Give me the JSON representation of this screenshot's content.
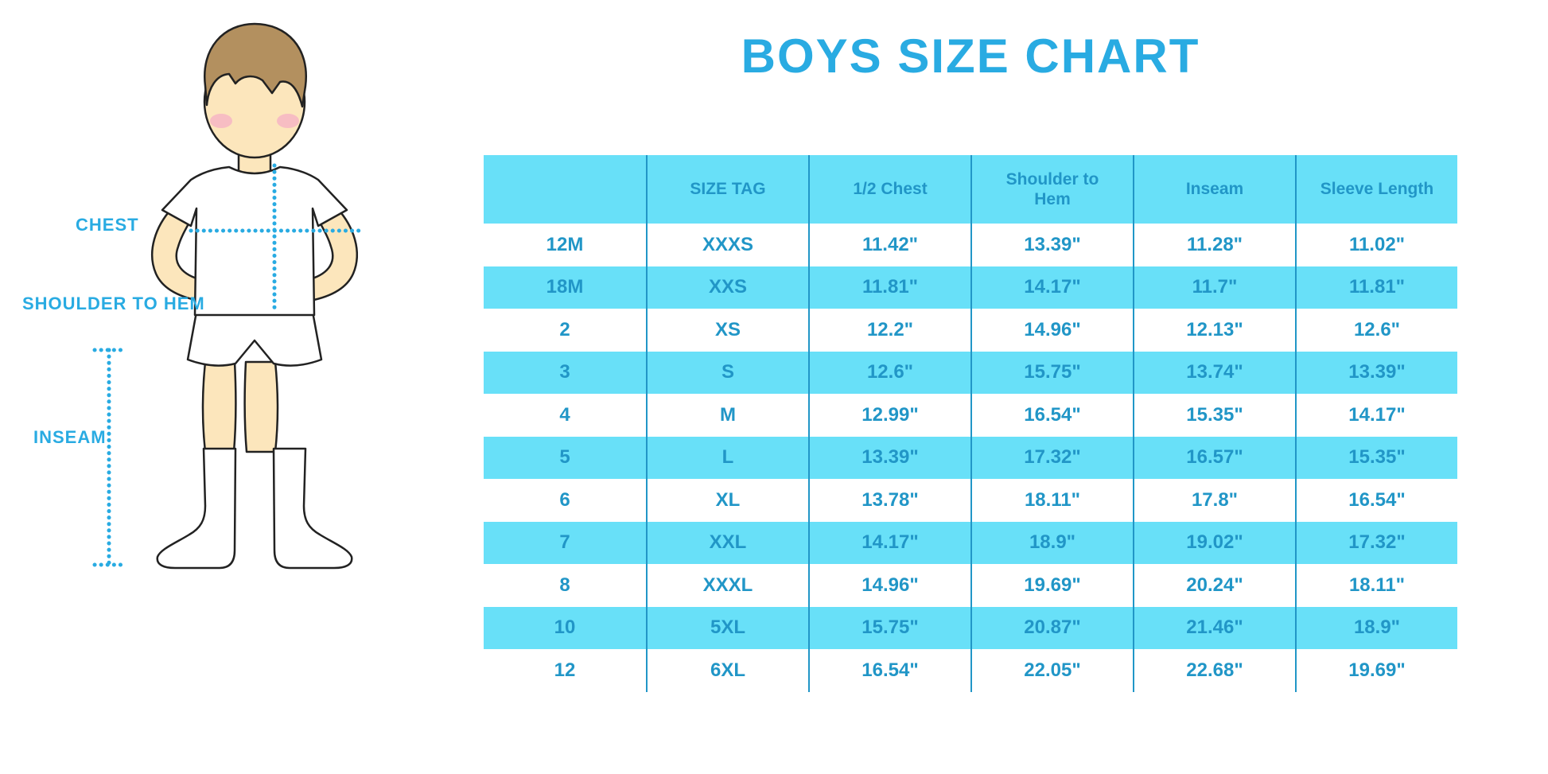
{
  "title": "BOYS SIZE CHART",
  "figure_labels": {
    "chest": "CHEST",
    "shoulder_to_hem": "SHOULDER TO HEM",
    "inseam": "INSEAM"
  },
  "colors": {
    "title_blue": "#29abe2",
    "table_text_blue": "#2196c7",
    "band_cyan": "#68e0f8",
    "skin": "#fce6bc",
    "hair_brown": "#b3905f",
    "cheek_pink": "#f5afc6",
    "outline": "#222222"
  },
  "chart_data": {
    "type": "table",
    "title": "BOYS SIZE CHART",
    "columns": [
      "",
      "SIZE TAG",
      "1/2 Chest",
      "Shoulder to Hem",
      "Inseam",
      "Sleeve Length"
    ],
    "rows": [
      [
        "12M",
        "XXXS",
        "11.42\"",
        "13.39\"",
        "11.28\"",
        "11.02\""
      ],
      [
        "18M",
        "XXS",
        "11.81\"",
        "14.17\"",
        "11.7\"",
        "11.81\""
      ],
      [
        "2",
        "XS",
        "12.2\"",
        "14.96\"",
        "12.13\"",
        "12.6\""
      ],
      [
        "3",
        "S",
        "12.6\"",
        "15.75\"",
        "13.74\"",
        "13.39\""
      ],
      [
        "4",
        "M",
        "12.99\"",
        "16.54\"",
        "15.35\"",
        "14.17\""
      ],
      [
        "5",
        "L",
        "13.39\"",
        "17.32\"",
        "16.57\"",
        "15.35\""
      ],
      [
        "6",
        "XL",
        "13.78\"",
        "18.11\"",
        "17.8\"",
        "16.54\""
      ],
      [
        "7",
        "XXL",
        "14.17\"",
        "18.9\"",
        "19.02\"",
        "17.32\""
      ],
      [
        "8",
        "XXXL",
        "14.96\"",
        "19.69\"",
        "20.24\"",
        "18.11\""
      ],
      [
        "10",
        "5XL",
        "15.75\"",
        "20.87\"",
        "21.46\"",
        "18.9\""
      ],
      [
        "12",
        "6XL",
        "16.54\"",
        "22.05\"",
        "22.68\"",
        "19.69\""
      ]
    ],
    "row_band_pattern": [
      "white",
      "cyan",
      "white",
      "cyan",
      "white",
      "cyan",
      "white",
      "cyan",
      "white",
      "cyan",
      "white"
    ],
    "units": "inches"
  }
}
